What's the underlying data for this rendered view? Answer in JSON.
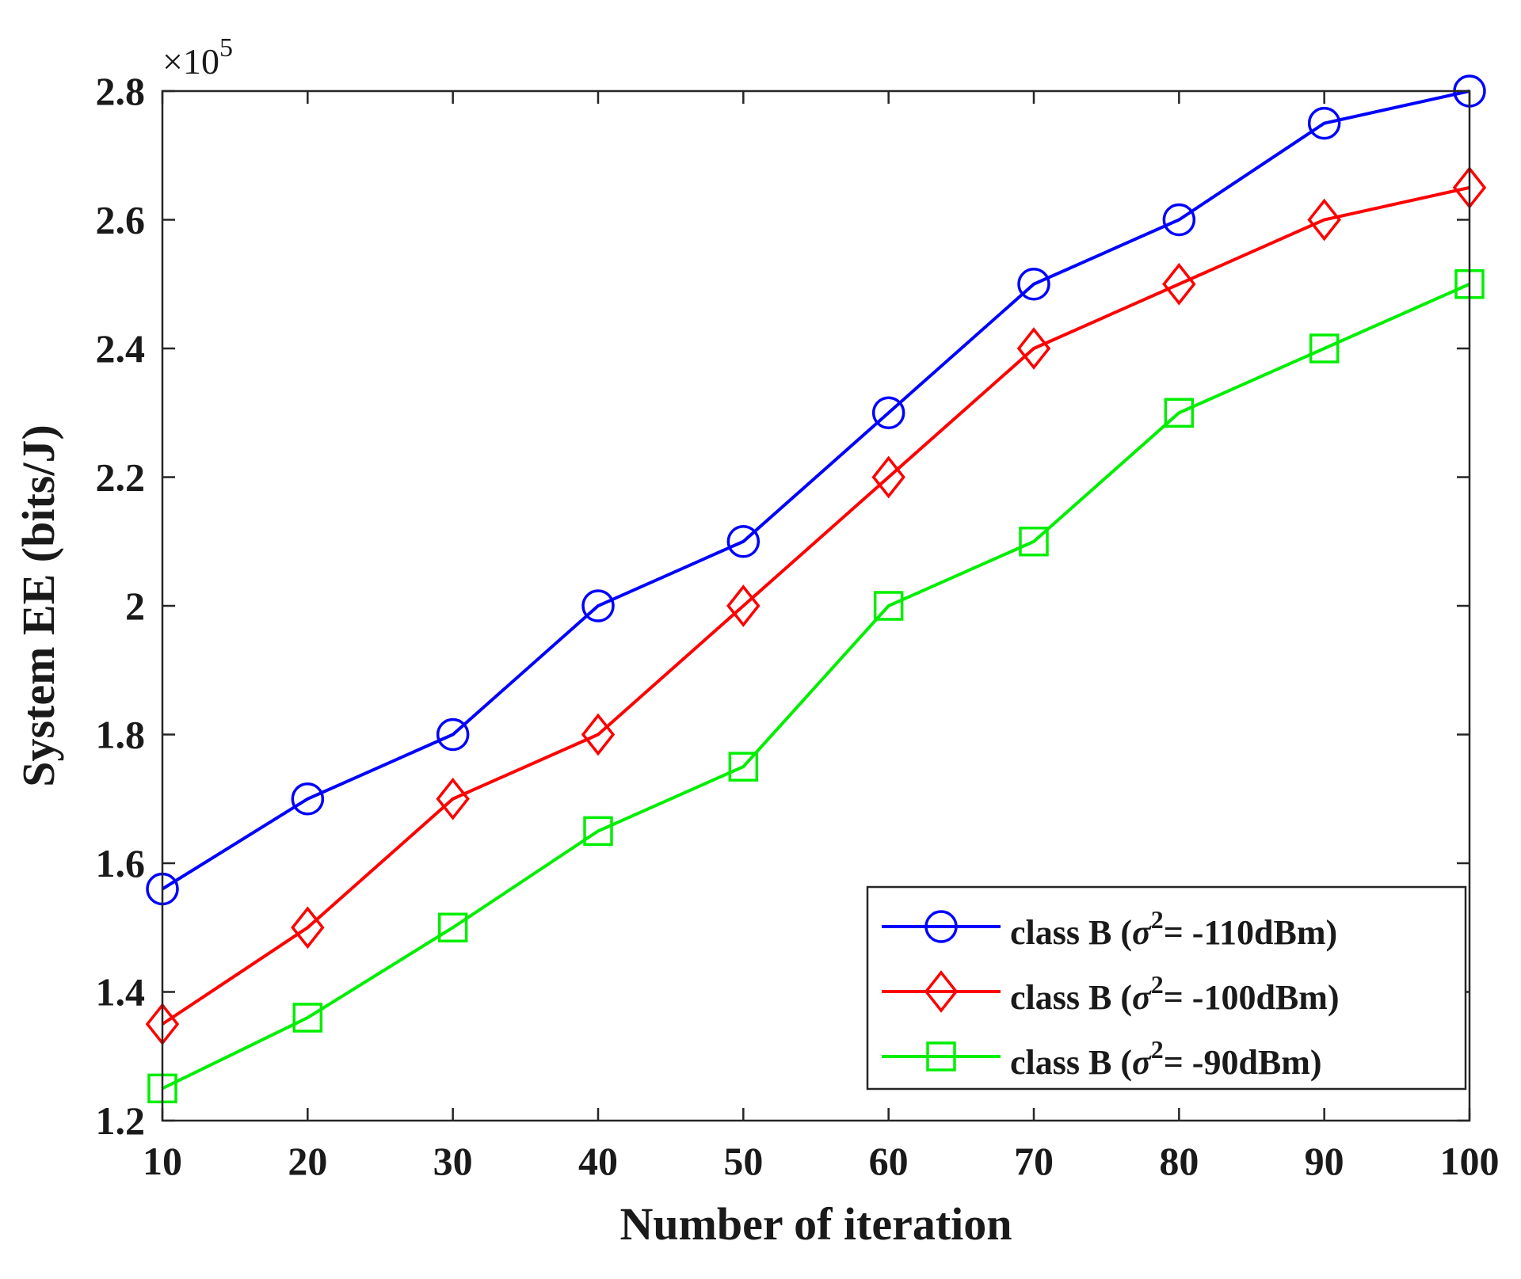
{
  "chart_data": {
    "type": "line",
    "title": "",
    "xlabel": "Number of iteration",
    "ylabel": "System EE (bits/J)",
    "y_multiplier": "×10",
    "y_multiplier_exp": "5",
    "x": [
      10,
      20,
      30,
      40,
      50,
      60,
      70,
      80,
      90,
      100
    ],
    "xlim": [
      10,
      100
    ],
    "ylim": [
      1.2,
      2.8
    ],
    "x_ticks": [
      "10",
      "20",
      "30",
      "40",
      "50",
      "60",
      "70",
      "80",
      "90",
      "100"
    ],
    "y_ticks": [
      "1.2",
      "1.4",
      "1.6",
      "1.8",
      "2",
      "2.2",
      "2.4",
      "2.6",
      "2.8"
    ],
    "grid": false,
    "legend_position": "bottom-right",
    "series": [
      {
        "name": "class B (σ2= -110dBm)",
        "label_prefix": "class B (",
        "label_sigma": "σ",
        "label_exp": "2",
        "label_suffix": "= -110dBm)",
        "color": "#0000ff",
        "marker": "circle",
        "values": [
          1.56,
          1.7,
          1.8,
          2.0,
          2.1,
          2.3,
          2.5,
          2.6,
          2.75,
          2.8
        ]
      },
      {
        "name": "class B (σ2= -100dBm)",
        "label_prefix": "class B (",
        "label_sigma": "σ",
        "label_exp": "2",
        "label_suffix": "= -100dBm)",
        "color": "#ff0000",
        "marker": "diamond",
        "values": [
          1.35,
          1.5,
          1.7,
          1.8,
          2.0,
          2.2,
          2.4,
          2.5,
          2.6,
          2.65
        ]
      },
      {
        "name": "class B (σ2= -90dBm)",
        "label_prefix": "class B (",
        "label_sigma": "σ",
        "label_exp": "2",
        "label_suffix": "= -90dBm)",
        "color": "#00ee00",
        "marker": "square",
        "values": [
          1.25,
          1.36,
          1.5,
          1.65,
          1.75,
          2.0,
          2.1,
          2.3,
          2.4,
          2.5
        ]
      }
    ]
  }
}
